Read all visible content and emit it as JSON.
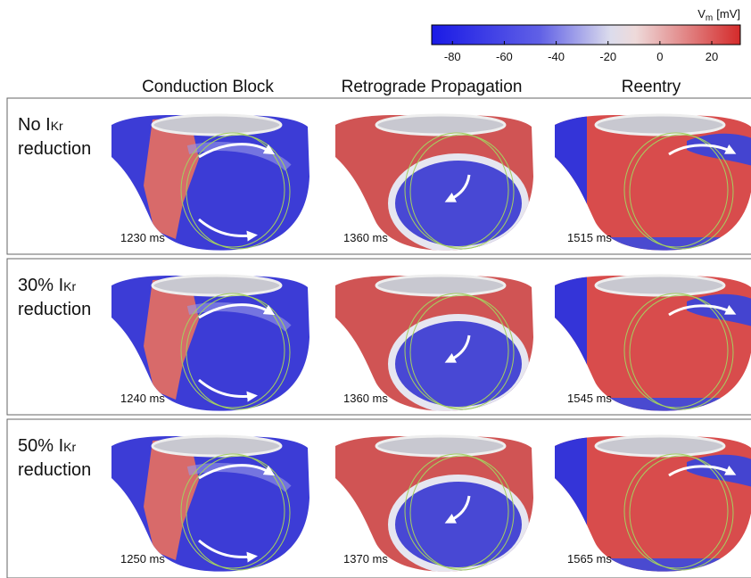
{
  "colorbar": {
    "label": "V",
    "label_sub": "m",
    "unit": "[mV]",
    "range": [
      -88,
      31
    ],
    "ticks": [
      -80,
      -60,
      -40,
      -20,
      0,
      20
    ]
  },
  "columns": [
    "Conduction Block",
    "Retrograde Propagation",
    "Reentry"
  ],
  "rows": [
    {
      "label": "No I",
      "label_sub": "Kr",
      "label_line2": "reduction",
      "times": [
        "1230 ms",
        "1360 ms",
        "1515 ms"
      ]
    },
    {
      "label": "30% I",
      "label_sub": "Kr",
      "label_line2": "reduction",
      "times": [
        "1240 ms",
        "1360 ms",
        "1545 ms"
      ]
    },
    {
      "label": "50% I",
      "label_sub": "Kr",
      "label_line2": "reduction",
      "times": [
        "1250 ms",
        "1370 ms",
        "1565 ms"
      ]
    }
  ]
}
